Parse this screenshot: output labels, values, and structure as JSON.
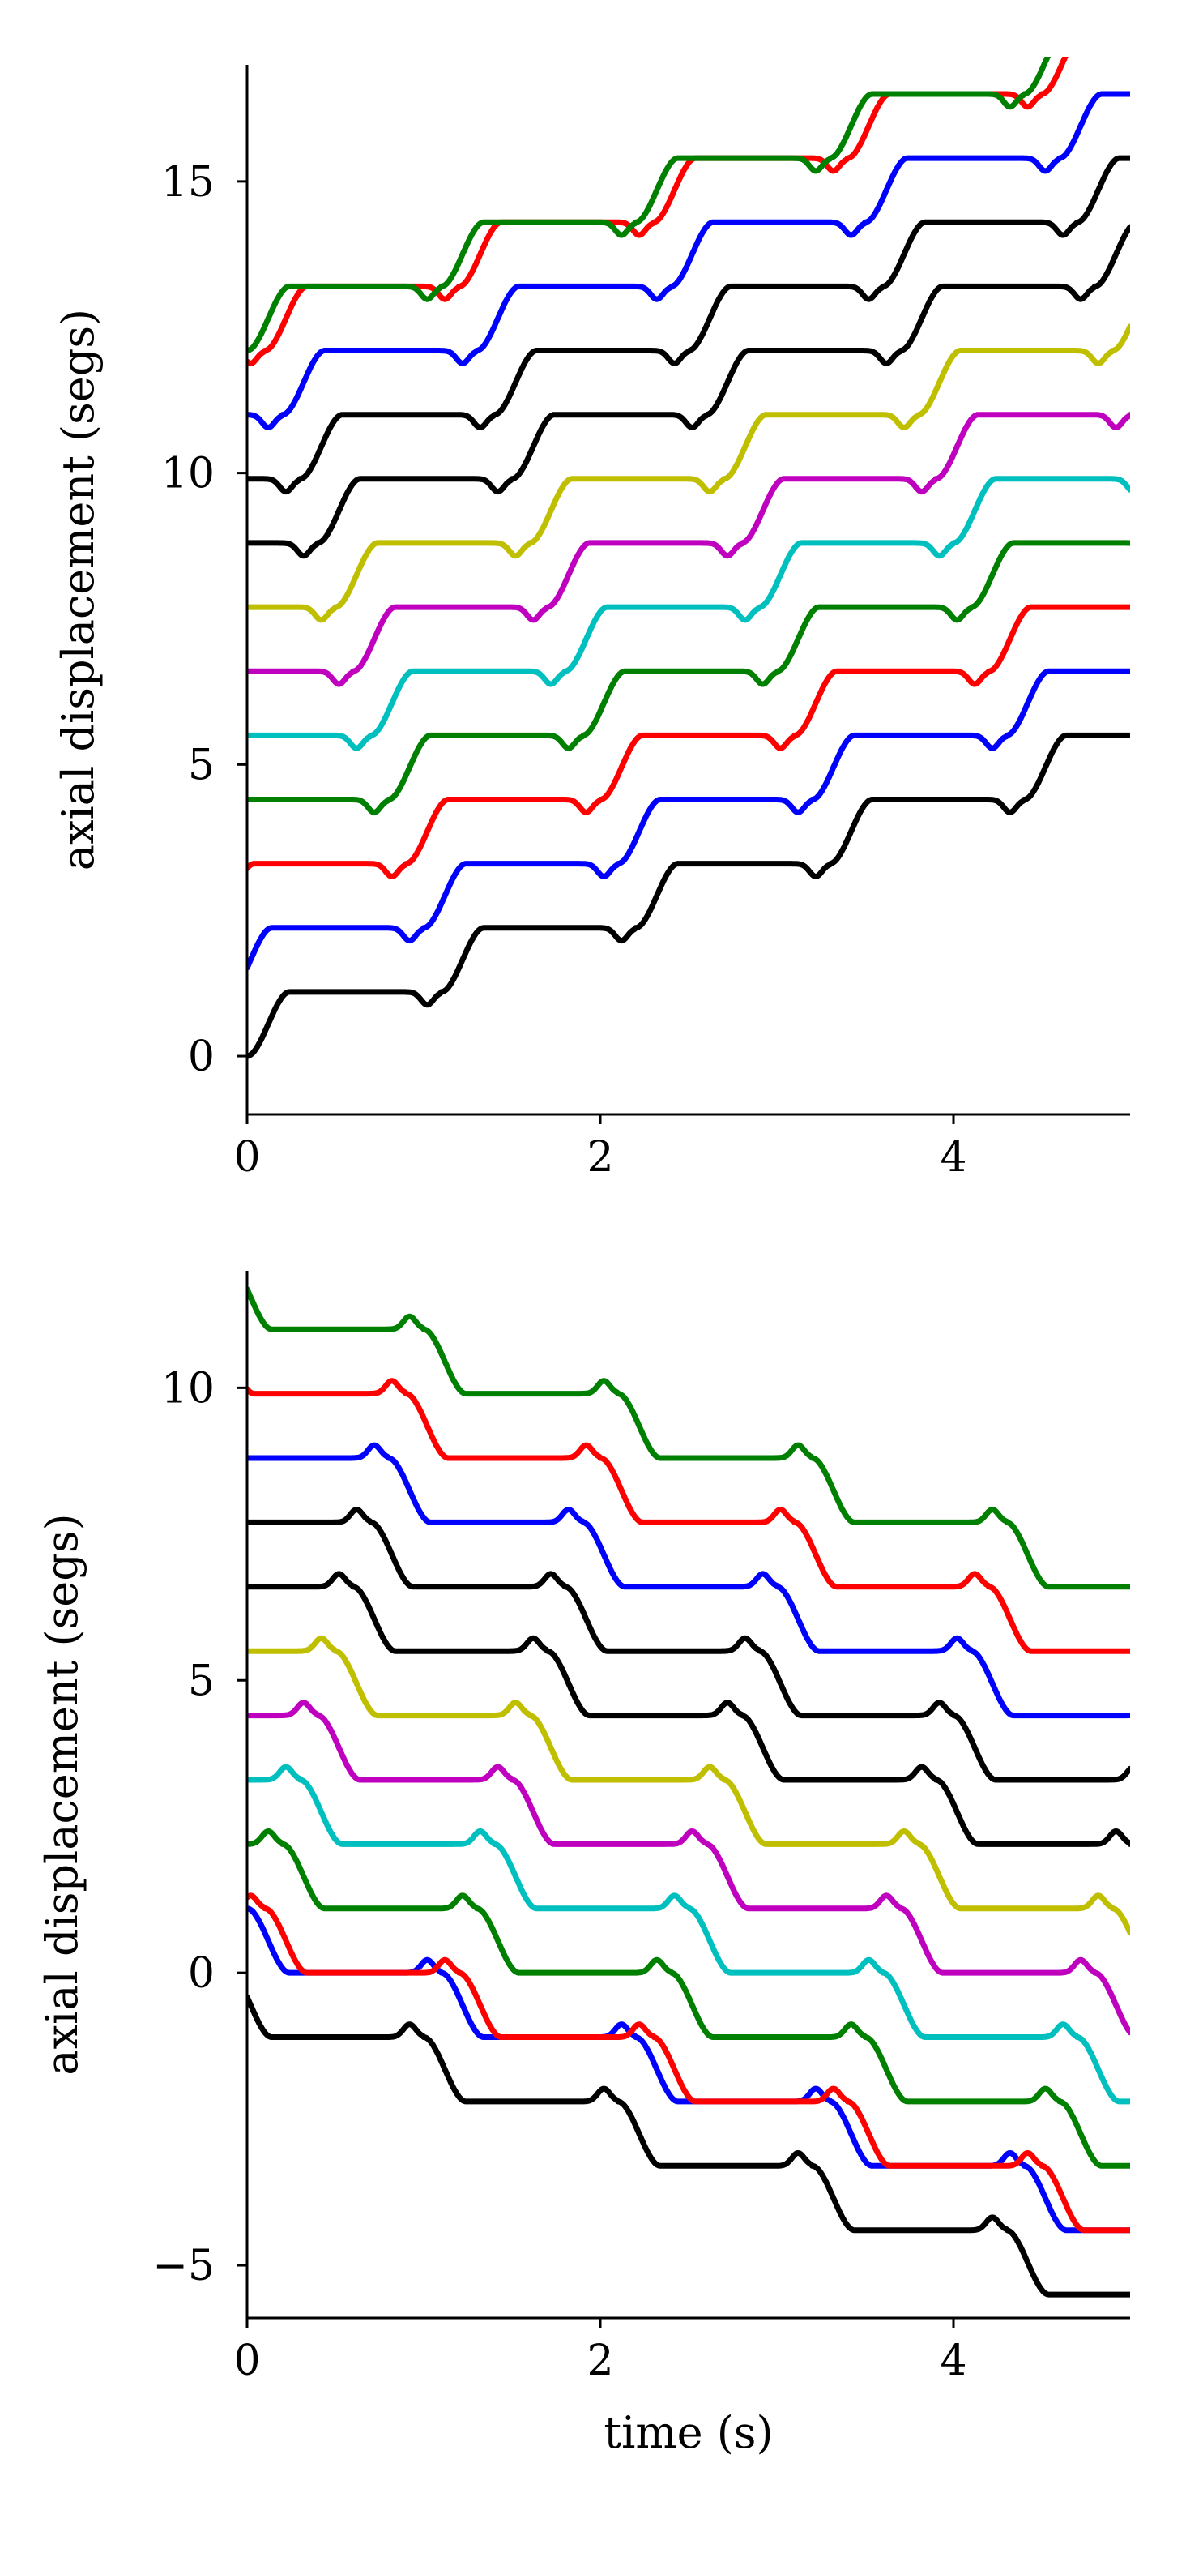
{
  "chart_data": [
    {
      "type": "line",
      "title": "",
      "xlabel": "",
      "ylabel": "axial displacement (segs)",
      "xlim": [
        0,
        5
      ],
      "ylim": [
        -1,
        17
      ],
      "xticks": [
        0,
        2,
        4
      ],
      "xtick_labels": [
        "0",
        "2",
        "4"
      ],
      "yticks": [
        0,
        5,
        10,
        15
      ],
      "ytick_labels": [
        "0",
        "5",
        "10",
        "15"
      ],
      "grid": false,
      "direction": 1,
      "step_size": 1.1,
      "period": 1.1,
      "rise_duration": 0.24,
      "series": [
        {
          "color": "#000000",
          "start": 0.0,
          "phase": 0.0
        },
        {
          "color": "#0000ff",
          "start": 1.1,
          "phase": 0.1
        },
        {
          "color": "#ff0000",
          "start": 2.2,
          "phase": 0.2
        },
        {
          "color": "#008000",
          "start": 3.3,
          "phase": 0.3
        },
        {
          "color": "#00bfbf",
          "start": 4.4,
          "phase": 0.4
        },
        {
          "color": "#bf00bf",
          "start": 5.5,
          "phase": 0.5
        },
        {
          "color": "#bfbf00",
          "start": 6.6,
          "phase": 0.6
        },
        {
          "color": "#000000",
          "start": 7.7,
          "phase": 0.7
        },
        {
          "color": "#000000",
          "start": 8.8,
          "phase": 0.8
        },
        {
          "color": "#0000ff",
          "start": 9.9,
          "phase": 0.9
        },
        {
          "color": "#ff0000",
          "start": 11.0,
          "phase": 1.0
        },
        {
          "color": "#008000",
          "start": 12.1,
          "phase": 0.0
        }
      ]
    },
    {
      "type": "line",
      "title": "",
      "xlabel": "time (s)",
      "ylabel": "axial displacement (segs)",
      "xlim": [
        0,
        5
      ],
      "ylim": [
        -5.9,
        12
      ],
      "xticks": [
        0,
        2,
        4
      ],
      "xtick_labels": [
        "0",
        "2",
        "4"
      ],
      "yticks": [
        -5,
        0,
        5,
        10
      ],
      "ytick_labels": [
        "−5",
        "0",
        "5",
        "10"
      ],
      "grid": false,
      "direction": -1,
      "step_size": 1.1,
      "period": 1.1,
      "rise_duration": 0.24,
      "series": [
        {
          "color": "#000000",
          "start": 0.0,
          "phase": 0.1
        },
        {
          "color": "#0000ff",
          "start": 1.1,
          "phase": 0.0
        },
        {
          "color": "#ff0000",
          "start": 2.2,
          "phase": 1.0
        },
        {
          "color": "#008000",
          "start": 3.3,
          "phase": 0.9
        },
        {
          "color": "#00bfbf",
          "start": 4.4,
          "phase": 0.8
        },
        {
          "color": "#bf00bf",
          "start": 5.5,
          "phase": 0.7
        },
        {
          "color": "#bfbf00",
          "start": 6.6,
          "phase": 0.6
        },
        {
          "color": "#000000",
          "start": 7.7,
          "phase": 0.5
        },
        {
          "color": "#000000",
          "start": 8.8,
          "phase": 0.4
        },
        {
          "color": "#0000ff",
          "start": 9.9,
          "phase": 0.3
        },
        {
          "color": "#ff0000",
          "start": 11.0,
          "phase": 0.2
        },
        {
          "color": "#008000",
          "start": 12.1,
          "phase": 0.1
        }
      ]
    }
  ]
}
